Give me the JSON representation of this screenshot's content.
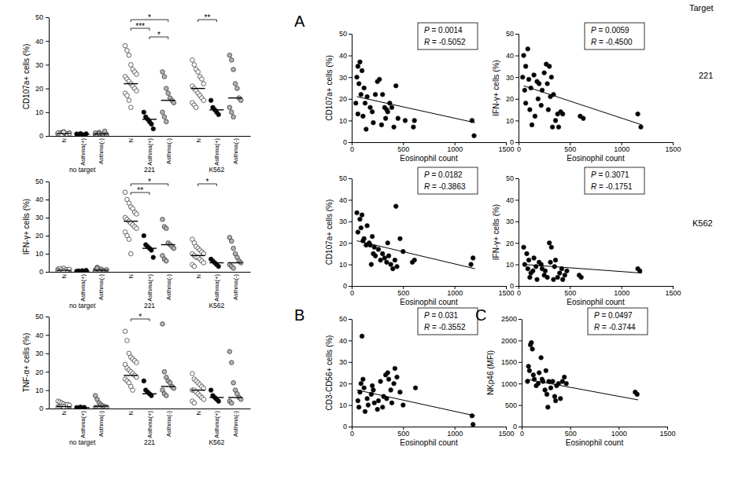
{
  "figure": {
    "panel_labels": [
      "A",
      "B",
      "C"
    ],
    "row_labels": [
      "Target",
      "221",
      "K562"
    ]
  },
  "chart_data": [
    {
      "type": "dot_plot",
      "ylabel": "CD107a+ cells (%)",
      "categories": [
        "N",
        "Asthma(+)",
        "Asthma(-)",
        "N",
        "Asthma(+)",
        "Asthma(-)",
        "N",
        "Asthma(+)",
        "Asthma(-)"
      ],
      "group_labels": [
        "no target",
        "221",
        "K562"
      ],
      "colors": [
        "#ffffff",
        "#000000",
        "#b3b3b3",
        "#ffffff",
        "#000000",
        "#b3b3b3",
        "#ffffff",
        "#000000",
        "#b3b3b3"
      ],
      "marker": "circle",
      "points": [
        [
          1.2,
          0.8,
          1.5,
          0.5,
          1.0,
          0.9,
          1.3,
          0.7,
          1.1,
          0.6,
          1.8,
          1.0,
          0.4,
          0.9,
          1.2,
          0.8,
          0.5,
          1.4
        ],
        [
          0.8,
          0.5,
          1.0,
          0.6,
          0.3,
          0.9
        ],
        [
          0.5,
          1.0,
          1.5,
          0.3,
          0.8,
          2.0,
          0.6,
          1.2,
          0.4,
          0.9
        ],
        [
          38,
          36,
          34,
          30,
          28,
          27,
          26,
          25,
          24,
          23,
          22,
          21,
          20,
          19,
          18,
          17,
          15,
          12
        ],
        [
          10,
          8,
          7,
          6,
          5,
          3
        ],
        [
          27,
          25,
          20,
          18,
          16,
          15,
          14,
          10,
          8,
          6
        ],
        [
          32,
          30,
          28,
          27,
          25,
          24,
          22,
          21,
          20,
          19,
          18,
          17,
          16,
          15,
          14,
          13,
          12
        ],
        [
          15,
          12,
          11,
          10,
          9
        ],
        [
          34,
          32,
          28,
          22,
          20,
          16,
          15,
          12,
          10,
          8
        ]
      ],
      "medians": [
        1.0,
        0.7,
        0.85,
        22,
        7,
        15,
        20,
        11,
        16
      ],
      "ylim": [
        0,
        50
      ],
      "yticks": [
        0,
        10,
        20,
        30,
        40,
        50
      ],
      "annotations": [
        {
          "text": "*",
          "between": [
            3,
            5
          ]
        },
        {
          "text": "***",
          "between": [
            3,
            4
          ]
        },
        {
          "text": "*",
          "between": [
            4,
            5
          ]
        },
        {
          "text": "**",
          "between": [
            6,
            7
          ]
        }
      ]
    },
    {
      "type": "dot_plot",
      "ylabel": "IFN-γ+ cells (%)",
      "categories": [
        "N",
        "Asthma(+)",
        "Asthma(-)",
        "N",
        "Asthma(+)",
        "Asthma(-)",
        "N",
        "Asthma(+)",
        "Asthma(-)"
      ],
      "group_labels": [
        "no target",
        "221",
        "K562"
      ],
      "colors": [
        "#ffffff",
        "#000000",
        "#b3b3b3",
        "#ffffff",
        "#000000",
        "#b3b3b3",
        "#ffffff",
        "#000000",
        "#b3b3b3"
      ],
      "marker": "circle",
      "points": [
        [
          1.5,
          1.0,
          0.8,
          2.0,
          0.5,
          1.2,
          0.9,
          0.6,
          1.8,
          0.7,
          0.4,
          1.1,
          0.3,
          1.4,
          0.8,
          0.5,
          1.0,
          0.6
        ],
        [
          0.3,
          0.5,
          0.2,
          0.6,
          0.4,
          0.8
        ],
        [
          1.0,
          2.5,
          0.5,
          1.5,
          0.8,
          0.3,
          1.2,
          0.6,
          2.0,
          0.4
        ],
        [
          44,
          40,
          38,
          36,
          35,
          33,
          32,
          30,
          29,
          28,
          27,
          26,
          25,
          24,
          22,
          20,
          18,
          10
        ],
        [
          20,
          15,
          14,
          13,
          12,
          8
        ],
        [
          29,
          25,
          24,
          16,
          15,
          14,
          13,
          9,
          7,
          6
        ],
        [
          18,
          16,
          14,
          13,
          12,
          11,
          10,
          10,
          9,
          8,
          8,
          7,
          6,
          5,
          4,
          3
        ],
        [
          7,
          6,
          5,
          4,
          3
        ],
        [
          19,
          17,
          13,
          10,
          8,
          6,
          5,
          4,
          3,
          2
        ]
      ],
      "medians": [
        0.85,
        0.45,
        0.9,
        28,
        13,
        15,
        9,
        5,
        5
      ],
      "ylim": [
        0,
        50
      ],
      "yticks": [
        0,
        10,
        20,
        30,
        40,
        50
      ],
      "annotations": [
        {
          "text": "*",
          "between": [
            3,
            5
          ]
        },
        {
          "text": "**",
          "between": [
            3,
            4
          ]
        },
        {
          "text": "*",
          "between": [
            6,
            7
          ]
        }
      ]
    },
    {
      "type": "dot_plot",
      "ylabel": "TNF-α+ cells (%)",
      "categories": [
        "N",
        "Asthma(+)",
        "Asthma(-)",
        "N",
        "Asthma(+)",
        "Asthma(-)",
        "N",
        "Asthma(+)",
        "Asthma(-)"
      ],
      "group_labels": [
        "no target",
        "221",
        "K562"
      ],
      "colors": [
        "#ffffff",
        "#000000",
        "#b3b3b3",
        "#ffffff",
        "#000000",
        "#b3b3b3",
        "#ffffff",
        "#000000",
        "#b3b3b3"
      ],
      "marker": "circle",
      "points": [
        [
          4.0,
          3.5,
          3.0,
          2.5,
          2.0,
          1.5,
          1.2,
          1.0,
          0.8,
          0.6,
          0.5,
          0.4,
          2.2,
          1.8,
          0.3,
          0.7,
          1.1,
          0.9
        ],
        [
          0.5,
          0.3,
          0.8,
          0.2,
          0.6
        ],
        [
          7.0,
          5.0,
          3.0,
          2.0,
          1.5,
          1.0,
          0.8,
          0.5,
          0.3,
          0.2
        ],
        [
          42,
          37,
          30,
          28,
          27,
          26,
          25,
          24,
          22,
          21,
          20,
          19,
          18,
          17,
          16,
          15,
          14,
          12,
          10
        ],
        [
          15,
          10,
          9,
          8,
          7
        ],
        [
          46,
          20,
          17,
          15,
          14,
          12,
          11,
          10,
          8,
          7
        ],
        [
          19,
          16,
          15,
          14,
          13,
          12,
          11,
          10,
          10,
          9,
          8,
          7,
          6,
          5,
          4,
          3
        ],
        [
          10,
          7,
          6,
          5,
          4
        ],
        [
          31,
          25,
          14,
          10,
          8,
          6,
          5,
          4,
          3
        ]
      ],
      "medians": [
        1.05,
        0.5,
        1.25,
        18,
        8,
        12,
        10,
        6,
        6
      ],
      "ylim": [
        0,
        50
      ],
      "yticks": [
        0,
        10,
        20,
        30,
        40,
        50
      ],
      "annotations": [
        {
          "text": "*",
          "between": [
            3,
            4
          ]
        }
      ]
    },
    {
      "type": "scatter",
      "xlabel": "Eosinophil count",
      "ylabel": "CD107a+ cells (%)",
      "color": "#000000",
      "marker": "circle",
      "x": [
        60,
        80,
        50,
        100,
        70,
        90,
        120,
        150,
        40,
        60,
        110,
        130,
        180,
        200,
        140,
        210,
        250,
        270,
        230,
        300,
        320,
        330,
        340,
        290,
        370,
        390,
        350,
        410,
        430,
        450,
        520,
        610,
        600,
        1170,
        1190
      ],
      "y": [
        35,
        37,
        30,
        33,
        27,
        22,
        25,
        21,
        18,
        13,
        12,
        18,
        16,
        14,
        6,
        9,
        28,
        29,
        22,
        22,
        16,
        11,
        15,
        8,
        18,
        16,
        14,
        7,
        26,
        11,
        10,
        10,
        7,
        10,
        3
      ],
      "fit": {
        "x": [
          50,
          1200
        ],
        "y": [
          21,
          9
        ]
      },
      "xlim": [
        0,
        1500
      ],
      "xticks": [
        0,
        500,
        1000,
        1500
      ],
      "ylim": [
        0,
        50
      ],
      "yticks": [
        0,
        10,
        20,
        30,
        40,
        50
      ],
      "annotations": [
        "P = 0.0014",
        "R = -0.5052"
      ]
    },
    {
      "type": "scatter",
      "xlabel": "Eosinophil count",
      "ylabel": "IFN-γ+ cells (%)",
      "color": "#000000",
      "marker": "circle",
      "x": [
        50,
        90,
        70,
        40,
        60,
        100,
        120,
        150,
        180,
        200,
        70,
        110,
        160,
        130,
        190,
        220,
        250,
        270,
        280,
        300,
        230,
        320,
        340,
        310,
        290,
        360,
        380,
        330,
        410,
        430,
        390,
        600,
        630,
        1160,
        1190
      ],
      "y": [
        40,
        43,
        35,
        30,
        24,
        29,
        25,
        31,
        28,
        27,
        18,
        15,
        12,
        8,
        20,
        17,
        32,
        36,
        27,
        35,
        24,
        30,
        22,
        21,
        15,
        10,
        13,
        7,
        14,
        13,
        7,
        12,
        11,
        13,
        7
      ],
      "fit": {
        "x": [
          50,
          1200
        ],
        "y": [
          26,
          8
        ]
      },
      "xlim": [
        0,
        1500
      ],
      "xticks": [
        0,
        500,
        1000,
        1500
      ],
      "ylim": [
        0,
        50
      ],
      "yticks": [
        0,
        10,
        20,
        30,
        40,
        50
      ],
      "annotations": [
        "P = 0.0059",
        "R = -0.4500"
      ]
    },
    {
      "type": "scatter",
      "xlabel": "Eosinophil count",
      "ylabel": "CD107a+ cells (%)",
      "color": "#000000",
      "marker": "circle",
      "x": [
        50,
        80,
        100,
        60,
        90,
        120,
        150,
        170,
        110,
        140,
        180,
        200,
        220,
        210,
        230,
        190,
        260,
        280,
        300,
        320,
        340,
        360,
        380,
        400,
        420,
        440,
        430,
        350,
        470,
        500,
        610,
        590,
        1160,
        1180
      ],
      "y": [
        34,
        31,
        33,
        25,
        27,
        22,
        28,
        20,
        21,
        19,
        19,
        23,
        18,
        15,
        14,
        10,
        17,
        12,
        15,
        13,
        11,
        14,
        10,
        8,
        12,
        9,
        37,
        20,
        22,
        16,
        12,
        11,
        10,
        13
      ],
      "fit": {
        "x": [
          50,
          1200
        ],
        "y": [
          21,
          8
        ]
      },
      "xlim": [
        0,
        1500
      ],
      "xticks": [
        0,
        500,
        1000,
        1500
      ],
      "ylim": [
        0,
        50
      ],
      "yticks": [
        0,
        10,
        20,
        30,
        40,
        50
      ],
      "annotations": [
        "P = 0.0182",
        "R = -0.3863"
      ]
    },
    {
      "type": "scatter",
      "xlabel": "Eosinophil count",
      "ylabel": "IFN-γ+ cells (%)",
      "color": "#000000",
      "marker": "circle",
      "x": [
        50,
        80,
        100,
        60,
        90,
        120,
        150,
        170,
        110,
        140,
        180,
        200,
        220,
        230,
        250,
        260,
        280,
        300,
        310,
        320,
        340,
        350,
        360,
        380,
        400,
        420,
        430,
        450,
        470,
        590,
        610,
        1160,
        1180
      ],
      "y": [
        18,
        15,
        12,
        10,
        8,
        6,
        13,
        9,
        4,
        7,
        3,
        11,
        10,
        8,
        5,
        7,
        4,
        20,
        11,
        18,
        3,
        9,
        12,
        4,
        6,
        8,
        3,
        5,
        7,
        5,
        4,
        8,
        7
      ],
      "fit": {
        "x": [
          50,
          1200
        ],
        "y": [
          10,
          6
        ]
      },
      "xlim": [
        0,
        1500
      ],
      "xticks": [
        0,
        500,
        1000,
        1500
      ],
      "ylim": [
        0,
        50
      ],
      "yticks": [
        0,
        10,
        20,
        30,
        40,
        50
      ],
      "annotations": [
        "P = 0.3071",
        "R = -0.1751"
      ]
    },
    {
      "type": "scatter",
      "xlabel": "Eosinophil count",
      "ylabel": "CD3-CD56+ cells (%)",
      "color": "#000000",
      "marker": "circle",
      "x": [
        60,
        70,
        80,
        90,
        100,
        110,
        120,
        130,
        150,
        160,
        190,
        200,
        210,
        220,
        250,
        260,
        280,
        300,
        310,
        330,
        340,
        350,
        360,
        380,
        390,
        410,
        420,
        440,
        470,
        500,
        620,
        1170,
        1180
      ],
      "y": [
        12,
        9,
        16,
        20,
        42,
        22,
        18,
        7,
        13,
        10,
        15,
        19,
        17,
        11,
        8,
        12,
        21,
        9,
        14,
        24,
        13,
        25,
        22,
        17,
        11,
        20,
        27,
        23,
        16,
        10,
        18,
        5,
        1
      ],
      "fit": {
        "x": [
          50,
          1200
        ],
        "y": [
          17,
          5
        ]
      },
      "xlim": [
        0,
        1500
      ],
      "xticks": [
        0,
        500,
        1000,
        1500
      ],
      "ylim": [
        0,
        50
      ],
      "yticks": [
        0,
        10,
        20,
        30,
        40,
        50
      ],
      "annotations": [
        "P = 0.031",
        "R = -0.3552"
      ]
    },
    {
      "type": "scatter",
      "xlabel": "Eosinophil count",
      "ylabel": "NKp46 (MFI)",
      "color": "#000000",
      "marker": "circle",
      "x": [
        70,
        90,
        100,
        110,
        80,
        120,
        130,
        60,
        150,
        170,
        180,
        200,
        210,
        220,
        240,
        250,
        260,
        280,
        300,
        320,
        340,
        350,
        360,
        380,
        400,
        420,
        440,
        460,
        270,
        1170,
        1190
      ],
      "y": [
        1400,
        1900,
        1950,
        1800,
        1300,
        1200,
        1100,
        1050,
        950,
        1000,
        1250,
        1600,
        1100,
        1050,
        850,
        1300,
        750,
        1050,
        900,
        1050,
        700,
        600,
        950,
        1000,
        650,
        1050,
        1150,
        1000,
        450,
        800,
        750
      ],
      "fit": {
        "x": [
          50,
          1200
        ],
        "y": [
          1100,
          620
        ]
      },
      "xlim": [
        0,
        1500
      ],
      "xticks": [
        0,
        500,
        1000,
        1500
      ],
      "ylim": [
        0,
        2500
      ],
      "yticks": [
        0,
        500,
        1000,
        1500,
        2000,
        2500
      ],
      "annotations": [
        "P = 0.0497",
        "R = -0.3744"
      ]
    }
  ]
}
